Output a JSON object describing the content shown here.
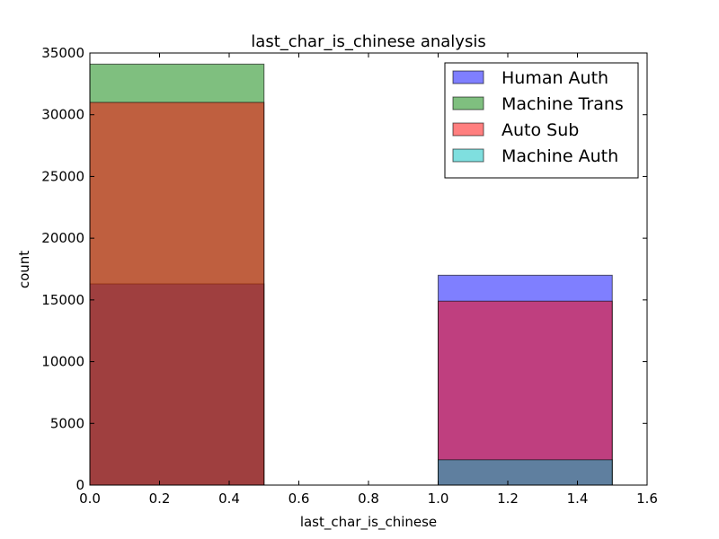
{
  "chart_data": {
    "type": "bar",
    "title": "last_char_is_chinese analysis",
    "xlabel": "last_char_is_chinese",
    "ylabel": "count",
    "xlim": [
      0.0,
      1.6
    ],
    "ylim": [
      0,
      35000
    ],
    "xticks": [
      0.0,
      0.2,
      0.4,
      0.6,
      0.8,
      1.0,
      1.2,
      1.4,
      1.6
    ],
    "xtick_labels": [
      "0.0",
      "0.2",
      "0.4",
      "0.6",
      "0.8",
      "1.0",
      "1.2",
      "1.4",
      "1.6"
    ],
    "yticks": [
      0,
      5000,
      10000,
      15000,
      20000,
      25000,
      30000,
      35000
    ],
    "ytick_labels": [
      "0",
      "5000",
      "10000",
      "15000",
      "20000",
      "25000",
      "30000",
      "35000"
    ],
    "bins": [
      [
        0.0,
        0.5
      ],
      [
        1.0,
        1.5
      ]
    ],
    "legend_position": "top-right",
    "series": [
      {
        "name": "Human Auth",
        "color": "#0000ff",
        "alpha": 0.5,
        "values": [
          16300,
          17000
        ]
      },
      {
        "name": "Machine Trans",
        "color": "#008000",
        "alpha": 0.5,
        "values": [
          34100,
          0
        ]
      },
      {
        "name": "Auto Sub",
        "color": "#ff0000",
        "alpha": 0.5,
        "values": [
          31000,
          14900
        ]
      },
      {
        "name": "Machine Auth",
        "color": "#00bfbf",
        "alpha": 0.5,
        "values": [
          0,
          2050
        ]
      }
    ]
  }
}
